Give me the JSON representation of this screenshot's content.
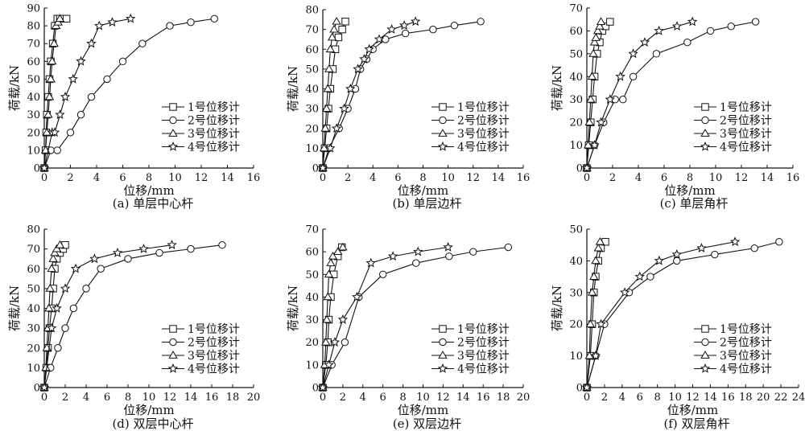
{
  "chart_data": [
    {
      "type": "line",
      "caption": "(a) 单层中心杆",
      "xlabel": "位移/mm",
      "ylabel": "荷载/kN",
      "xlim": [
        0,
        16
      ],
      "ylim": [
        0,
        90
      ],
      "xticks": [
        0,
        2,
        4,
        6,
        8,
        10,
        12,
        14,
        16
      ],
      "yticks": [
        0,
        10,
        20,
        30,
        40,
        50,
        60,
        70,
        80,
        90
      ],
      "legend": "lower-right",
      "series": [
        {
          "name": "1号位移计",
          "marker": "square",
          "x": [
            0,
            0.1,
            0.15,
            0.2,
            0.3,
            0.4,
            0.5,
            0.65,
            0.8,
            1.0,
            1.2,
            1.45,
            1.7
          ],
          "y": [
            0,
            10,
            20,
            30,
            40,
            50,
            60,
            70,
            80,
            84,
            84,
            84,
            84
          ]
        },
        {
          "name": "2号位移计",
          "marker": "circle",
          "x": [
            0,
            0.5,
            1.0,
            2.0,
            2.8,
            3.6,
            4.8,
            6.0,
            7.5,
            9.6,
            11.2,
            13.0
          ],
          "y": [
            0,
            10,
            10,
            20,
            30,
            40,
            50,
            60,
            70,
            80,
            82,
            84
          ]
        },
        {
          "name": "3号位移计",
          "marker": "triangle",
          "x": [
            0,
            0.1,
            0.2,
            0.3,
            0.4,
            0.5,
            0.6,
            0.75,
            0.9,
            1.05,
            1.2
          ],
          "y": [
            0,
            10,
            20,
            30,
            40,
            50,
            60,
            70,
            80,
            82,
            84
          ]
        },
        {
          "name": "4号位移计",
          "marker": "star",
          "x": [
            0,
            0.6,
            0.8,
            1.2,
            1.6,
            2.2,
            2.8,
            3.6,
            4.2,
            5.2,
            6.6
          ],
          "y": [
            0,
            20,
            20,
            30,
            40,
            50,
            60,
            70,
            80,
            82,
            84
          ]
        }
      ]
    },
    {
      "type": "line",
      "caption": "(b) 单层边杆",
      "xlabel": "位移/mm",
      "ylabel": "荷载/kN",
      "xlim": [
        0,
        16
      ],
      "ylim": [
        0,
        80
      ],
      "xticks": [
        0,
        2,
        4,
        6,
        8,
        10,
        12,
        14,
        16
      ],
      "yticks": [
        0,
        10,
        20,
        30,
        40,
        50,
        60,
        70,
        80
      ],
      "legend": "lower-right",
      "series": [
        {
          "name": "1号位移计",
          "marker": "square",
          "x": [
            0,
            0.15,
            0.3,
            0.45,
            0.6,
            0.8,
            1.0,
            1.25,
            1.55,
            1.8
          ],
          "y": [
            0,
            10,
            20,
            30,
            40,
            50,
            60,
            66,
            70,
            74
          ]
        },
        {
          "name": "2号位移计",
          "marker": "circle",
          "x": [
            0,
            0.5,
            1.3,
            2.0,
            2.6,
            3.0,
            3.5,
            4.0,
            5.0,
            6.6,
            8.8,
            10.5,
            12.6
          ],
          "y": [
            0,
            10,
            20,
            30,
            40,
            50,
            55,
            60,
            65,
            68,
            70,
            72,
            74
          ]
        },
        {
          "name": "3号位移计",
          "marker": "triangle",
          "x": [
            0,
            0.1,
            0.2,
            0.3,
            0.4,
            0.5,
            0.6,
            0.75,
            0.9,
            1.1
          ],
          "y": [
            0,
            10,
            20,
            30,
            40,
            50,
            60,
            66,
            70,
            74
          ]
        },
        {
          "name": "4号位移计",
          "marker": "star",
          "x": [
            0,
            0.6,
            1.1,
            1.7,
            2.2,
            2.8,
            3.3,
            3.7,
            4.5,
            5.5,
            6.5,
            7.4
          ],
          "y": [
            0,
            10,
            20,
            30,
            40,
            50,
            55,
            60,
            65,
            70,
            72,
            74
          ]
        }
      ]
    },
    {
      "type": "line",
      "caption": "(c) 单层角杆",
      "xlabel": "位移/mm",
      "ylabel": "荷载/kN",
      "xlim": [
        0,
        16
      ],
      "ylim": [
        0,
        70
      ],
      "xticks": [
        0,
        2,
        4,
        6,
        8,
        10,
        12,
        14,
        16
      ],
      "yticks": [
        0,
        10,
        20,
        30,
        40,
        50,
        60,
        70
      ],
      "legend": "lower-right",
      "series": [
        {
          "name": "1号位移计",
          "marker": "square",
          "x": [
            0,
            0.15,
            0.3,
            0.45,
            0.6,
            0.8,
            1.0,
            1.2,
            1.45,
            1.8
          ],
          "y": [
            0,
            10,
            20,
            30,
            40,
            50,
            55,
            60,
            62,
            64
          ]
        },
        {
          "name": "2号位移计",
          "marker": "circle",
          "x": [
            0,
            0.6,
            1.3,
            2.2,
            2.8,
            3.6,
            5.4,
            7.8,
            9.6,
            11.2,
            13.1
          ],
          "y": [
            0,
            10,
            20,
            30,
            30,
            40,
            50,
            55,
            60,
            62,
            64
          ]
        },
        {
          "name": "3号位移计",
          "marker": "triangle",
          "x": [
            0,
            0.1,
            0.2,
            0.3,
            0.4,
            0.5,
            0.6,
            0.7,
            0.85,
            1.0,
            1.1
          ],
          "y": [
            0,
            10,
            20,
            30,
            40,
            50,
            55,
            57,
            60,
            62,
            64
          ]
        },
        {
          "name": "4号位移计",
          "marker": "star",
          "x": [
            0,
            0.6,
            1.1,
            1.8,
            2.6,
            3.6,
            4.5,
            5.6,
            7.0,
            8.2
          ],
          "y": [
            0,
            10,
            20,
            30,
            40,
            50,
            55,
            60,
            62,
            64
          ]
        }
      ]
    },
    {
      "type": "line",
      "caption": "(d) 双层中心杆",
      "xlabel": "位移/mm",
      "ylabel": "荷载/kN",
      "xlim": [
        0,
        20
      ],
      "ylim": [
        0,
        80
      ],
      "xticks": [
        0,
        2,
        4,
        6,
        8,
        10,
        12,
        14,
        16,
        18,
        20
      ],
      "yticks": [
        0,
        10,
        20,
        30,
        40,
        50,
        60,
        70,
        80
      ],
      "legend": "lower-right",
      "series": [
        {
          "name": "1号位移计",
          "marker": "square",
          "x": [
            0,
            0.2,
            0.35,
            0.5,
            0.7,
            0.85,
            1.0,
            1.2,
            1.5,
            1.8,
            2.0
          ],
          "y": [
            0,
            10,
            20,
            30,
            40,
            50,
            60,
            65,
            68,
            70,
            72
          ]
        },
        {
          "name": "2号位移计",
          "marker": "circle",
          "x": [
            0,
            0.6,
            1.3,
            2.0,
            2.8,
            4.0,
            5.4,
            8.0,
            11.0,
            14.0,
            17.0
          ],
          "y": [
            0,
            10,
            20,
            30,
            40,
            50,
            60,
            65,
            68,
            70,
            72
          ]
        },
        {
          "name": "3号位移计",
          "marker": "triangle",
          "x": [
            0,
            0.15,
            0.25,
            0.35,
            0.45,
            0.55,
            0.7,
            0.85,
            1.0,
            1.2,
            1.5
          ],
          "y": [
            0,
            10,
            20,
            30,
            40,
            50,
            60,
            65,
            68,
            70,
            72
          ]
        },
        {
          "name": "4号位移计",
          "marker": "star",
          "x": [
            0,
            0.7,
            1.2,
            2.0,
            3.0,
            4.8,
            7.0,
            9.5,
            12.2
          ],
          "y": [
            0,
            30,
            40,
            50,
            60,
            65,
            68,
            70,
            72
          ]
        }
      ]
    },
    {
      "type": "line",
      "caption": "(e) 双层边杆",
      "xlabel": "位移/mm",
      "ylabel": "荷载/kN",
      "xlim": [
        0,
        20
      ],
      "ylim": [
        0,
        70
      ],
      "xticks": [
        0,
        2,
        4,
        6,
        8,
        10,
        12,
        14,
        16,
        18,
        20
      ],
      "yticks": [
        0,
        10,
        20,
        30,
        40,
        50,
        60,
        70
      ],
      "legend": "lower-right",
      "series": [
        {
          "name": "1号位移计",
          "marker": "square",
          "x": [
            0,
            0.3,
            0.5,
            0.6,
            0.8,
            1.1,
            1.5,
            1.9
          ],
          "y": [
            0,
            10,
            20,
            30,
            40,
            50,
            58,
            62
          ]
        },
        {
          "name": "2号位移计",
          "marker": "circle",
          "x": [
            0,
            0.9,
            2.2,
            3.6,
            6.0,
            9.3,
            12.6,
            15.0,
            18.5
          ],
          "y": [
            0,
            10,
            20,
            40,
            50,
            55,
            58,
            60,
            62
          ]
        },
        {
          "name": "3号位移计",
          "marker": "triangle",
          "x": [
            0,
            0.2,
            0.3,
            0.4,
            0.5,
            0.6,
            0.8,
            1.0,
            1.5,
            2.0
          ],
          "y": [
            0,
            10,
            20,
            30,
            40,
            50,
            55,
            58,
            60,
            62
          ]
        },
        {
          "name": "4号位移计",
          "marker": "star",
          "x": [
            0,
            0.6,
            1.2,
            2.0,
            3.4,
            4.8,
            7.0,
            9.5,
            12.5
          ],
          "y": [
            0,
            10,
            20,
            30,
            40,
            55,
            58,
            60,
            62
          ]
        }
      ]
    },
    {
      "type": "line",
      "caption": "(f) 双层角杆",
      "xlabel": "位移/mm",
      "ylabel": "荷载/kN",
      "xlim": [
        0,
        24
      ],
      "ylim": [
        0,
        50
      ],
      "xticks": [
        0,
        2,
        4,
        6,
        8,
        10,
        12,
        14,
        16,
        18,
        20,
        22,
        24
      ],
      "yticks": [
        0,
        10,
        20,
        30,
        40,
        50
      ],
      "legend": "lower-right",
      "series": [
        {
          "name": "1号位移计",
          "marker": "square",
          "x": [
            0,
            0.4,
            0.6,
            0.8,
            1.0,
            1.3,
            1.6,
            2.1
          ],
          "y": [
            0,
            10,
            20,
            30,
            35,
            40,
            44,
            46
          ]
        },
        {
          "name": "2号位移计",
          "marker": "circle",
          "x": [
            0,
            1.0,
            2.0,
            4.8,
            7.2,
            10.2,
            14.5,
            19.0,
            21.8
          ],
          "y": [
            0,
            10,
            20,
            30,
            35,
            40,
            42,
            44,
            46
          ]
        },
        {
          "name": "3号位移计",
          "marker": "triangle",
          "x": [
            0,
            0.3,
            0.4,
            0.6,
            0.8,
            1.0,
            1.3,
            1.5
          ],
          "y": [
            0,
            10,
            20,
            30,
            35,
            40,
            44,
            46
          ]
        },
        {
          "name": "4号位移计",
          "marker": "star",
          "x": [
            0,
            1.0,
            1.6,
            4.3,
            6.0,
            8.2,
            10.2,
            13.0,
            16.8
          ],
          "y": [
            0,
            10,
            20,
            30,
            35,
            40,
            42,
            44,
            46
          ]
        }
      ]
    }
  ]
}
